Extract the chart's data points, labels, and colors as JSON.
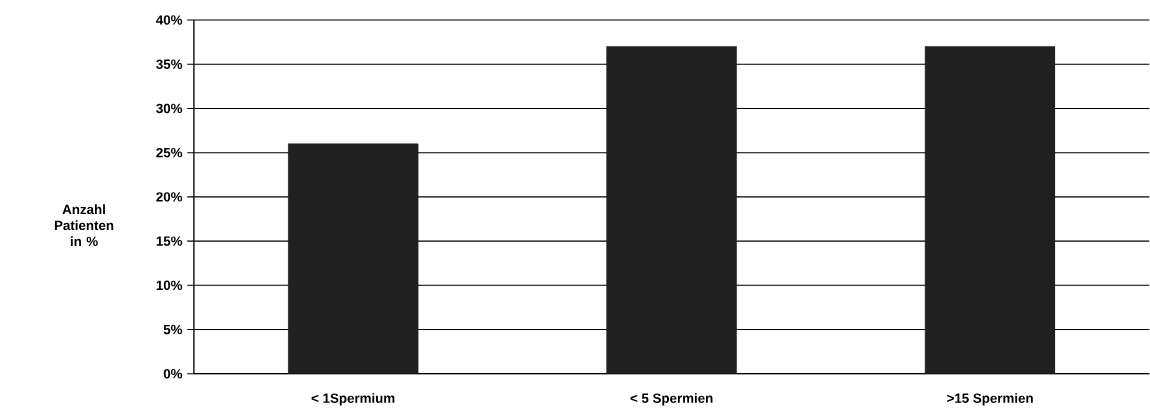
{
  "chart_data": {
    "type": "bar",
    "ylabel": "Anzahl Patienten in %",
    "categories": [
      "< 1Spermium",
      "< 5 Spermien",
      ">15 Spermien"
    ],
    "values": [
      26,
      37,
      37
    ],
    "color": "#202020",
    "ylim": [
      0,
      40
    ],
    "yticks": [
      {
        "value": 0,
        "label": "0%"
      },
      {
        "value": 5,
        "label": "5%"
      },
      {
        "value": 10,
        "label": "10%"
      },
      {
        "value": 15,
        "label": "15%"
      },
      {
        "value": 20,
        "label": "20%"
      },
      {
        "value": 25,
        "label": "25%"
      },
      {
        "value": 30,
        "label": "30%"
      },
      {
        "value": 35,
        "label": "35%"
      },
      {
        "value": 40,
        "label": "40%"
      }
    ],
    "grid": "y"
  }
}
